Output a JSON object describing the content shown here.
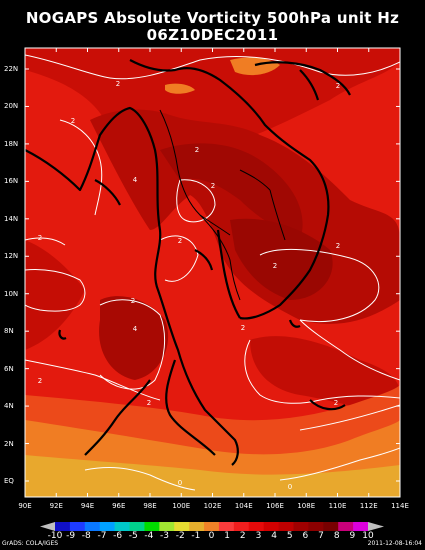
{
  "title": "NOGAPS Absolute Vorticity 500hPa unit Hz",
  "subtitle": "06Z10DEC2011",
  "y_ticks": [
    "22N",
    "20N",
    "18N",
    "16N",
    "14N",
    "12N",
    "10N",
    "8N",
    "6N",
    "4N",
    "2N",
    "EQ"
  ],
  "x_ticks": [
    "90E",
    "92E",
    "94E",
    "96E",
    "98E",
    "100E",
    "102E",
    "104E",
    "106E",
    "108E",
    "110E",
    "112E",
    "114E"
  ],
  "contour_labels": [
    "2",
    "2",
    "2",
    "4",
    "2",
    "2",
    "2",
    "2",
    "2",
    "2",
    "2",
    "4",
    "2",
    "2",
    "2",
    "2",
    "0",
    "0"
  ],
  "colorbar_labels": [
    "-10",
    "-9",
    "-8",
    "-7",
    "-6",
    "-5",
    "-4",
    "-3",
    "-2",
    "-1",
    "0",
    "1",
    "2",
    "3",
    "4",
    "5",
    "6",
    "7",
    "8",
    "9",
    "10"
  ],
  "colorbar_colors": [
    "#1010c8",
    "#1e3cff",
    "#0a78ff",
    "#00a0ff",
    "#00c8c8",
    "#00d28c",
    "#00dc00",
    "#a0e632",
    "#e6dc32",
    "#e6af2d",
    "#f08228",
    "#fa3c3c",
    "#f01e1e",
    "#e60a0a",
    "#d20000",
    "#be0000",
    "#a00000",
    "#8c0000",
    "#780000",
    "#c8007a",
    "#dc00dc"
  ],
  "credit": "GrADS: COLA/IGES",
  "stamp": "2011-12-08-16:04"
}
